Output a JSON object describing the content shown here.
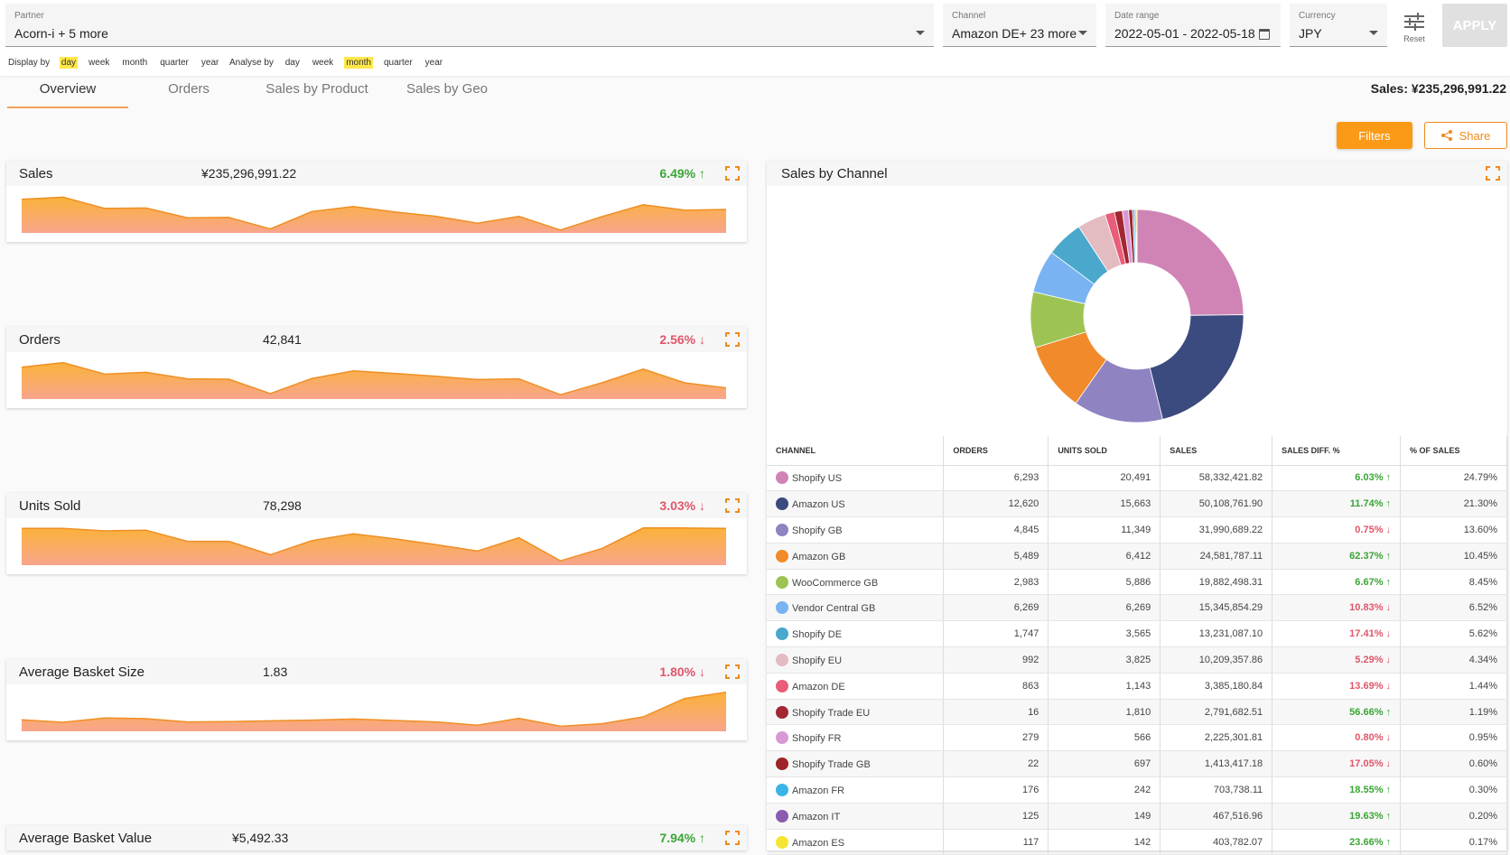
{
  "filters": {
    "partner": {
      "label": "Partner",
      "value": "Acorn-i + 5 more"
    },
    "channel": {
      "label": "Channel",
      "value": "Amazon DE+ 23 more"
    },
    "date_range": {
      "label": "Date range",
      "value": "2022-05-01 - 2022-05-18"
    },
    "currency": {
      "label": "Currency",
      "value": "JPY"
    },
    "reset_label": "Reset",
    "apply_label": "APPLY"
  },
  "display_by": {
    "label": "Display by",
    "options": [
      "day",
      "week",
      "month",
      "quarter",
      "year"
    ],
    "selected": "day"
  },
  "analyse_by": {
    "label": "Analyse by",
    "options": [
      "day",
      "week",
      "month",
      "quarter",
      "year"
    ],
    "selected": "month"
  },
  "tabs": [
    "Overview",
    "Orders",
    "Sales by Product",
    "Sales by Geo"
  ],
  "active_tab": "Overview",
  "total_sales": "Sales: ¥235,296,991.22",
  "actions": {
    "filters": "Filters",
    "share": "Share"
  },
  "accent_color": "#fb9a17",
  "kpis": [
    {
      "name": "Sales",
      "value": "¥235,296,991.22",
      "change": "6.49%",
      "dir": "up",
      "series": [
        0.83,
        0.89,
        0.58,
        0.59,
        0.32,
        0.33,
        0.01,
        0.49,
        0.63,
        0.48,
        0.36,
        0.17,
        0.36,
        -0.02,
        0.35,
        0.68,
        0.53,
        0.55
      ]
    },
    {
      "name": "Orders",
      "value": "42,841",
      "change": "2.56%",
      "dir": "down",
      "series": [
        0.78,
        0.91,
        0.59,
        0.64,
        0.46,
        0.45,
        0.05,
        0.47,
        0.68,
        0.61,
        0.53,
        0.44,
        0.46,
        0.02,
        0.35,
        0.73,
        0.35,
        0.21
      ]
    },
    {
      "name": "Units Sold",
      "value": "78,298",
      "change": "3.03%",
      "dir": "down",
      "series": [
        0.92,
        0.92,
        0.85,
        0.87,
        0.56,
        0.56,
        0.19,
        0.58,
        0.77,
        0.63,
        0.47,
        0.29,
        0.66,
        0.02,
        0.36,
        0.93,
        0.93,
        0.92
      ]
    },
    {
      "name": "Average Basket Size",
      "value": "1.83",
      "change": "1.80%",
      "dir": "down",
      "series": [
        0.22,
        0.15,
        0.27,
        0.25,
        0.16,
        0.17,
        0.19,
        0.21,
        0.24,
        0.2,
        0.16,
        0.07,
        0.26,
        0.04,
        0.11,
        0.3,
        0.81,
        0.98
      ]
    },
    {
      "name": "Average Basket Value",
      "value": "¥5,492.33",
      "change": "7.94%",
      "dir": "up",
      "series": []
    }
  ],
  "channel_panel": {
    "title": "Sales by Channel",
    "columns": [
      "CHANNEL",
      "ORDERS",
      "UNITS SOLD",
      "SALES",
      "SALES DIFF. %",
      "% OF SALES"
    ],
    "rows": [
      {
        "channel": "Shopify US",
        "color": "#d084b6",
        "orders": "6,293",
        "units": "20,491",
        "sales": "58,332,421.82",
        "diff": "6.03%",
        "dir": "up",
        "share": "24.79%"
      },
      {
        "channel": "Amazon US",
        "color": "#3b4a7f",
        "orders": "12,620",
        "units": "15,663",
        "sales": "50,108,761.90",
        "diff": "11.74%",
        "dir": "up",
        "share": "21.30%"
      },
      {
        "channel": "Shopify GB",
        "color": "#8f83c2",
        "orders": "4,845",
        "units": "11,349",
        "sales": "31,990,689.22",
        "diff": "0.75%",
        "dir": "down",
        "share": "13.60%"
      },
      {
        "channel": "Amazon GB",
        "color": "#f18a2a",
        "orders": "5,489",
        "units": "6,412",
        "sales": "24,581,787.11",
        "diff": "62.37%",
        "dir": "up",
        "share": "10.45%"
      },
      {
        "channel": "WooCommerce GB",
        "color": "#9dc452",
        "orders": "2,983",
        "units": "5,886",
        "sales": "19,882,498.31",
        "diff": "6.67%",
        "dir": "up",
        "share": "8.45%"
      },
      {
        "channel": "Vendor Central GB",
        "color": "#7ab3f2",
        "orders": "6,269",
        "units": "6,269",
        "sales": "15,345,854.29",
        "diff": "10.83%",
        "dir": "down",
        "share": "6.52%"
      },
      {
        "channel": "Shopify DE",
        "color": "#4aa8cc",
        "orders": "1,747",
        "units": "3,565",
        "sales": "13,231,087.10",
        "diff": "17.41%",
        "dir": "down",
        "share": "5.62%"
      },
      {
        "channel": "Shopify EU",
        "color": "#e3bcc2",
        "orders": "992",
        "units": "3,825",
        "sales": "10,209,357.86",
        "diff": "5.29%",
        "dir": "down",
        "share": "4.34%"
      },
      {
        "channel": "Amazon DE",
        "color": "#e85d78",
        "orders": "863",
        "units": "1,143",
        "sales": "3,385,180.84",
        "diff": "13.69%",
        "dir": "down",
        "share": "1.44%"
      },
      {
        "channel": "Shopify Trade EU",
        "color": "#a32633",
        "orders": "16",
        "units": "1,810",
        "sales": "2,791,682.51",
        "diff": "56.66%",
        "dir": "up",
        "share": "1.19%"
      },
      {
        "channel": "Shopify FR",
        "color": "#d79ad6",
        "orders": "279",
        "units": "566",
        "sales": "2,225,301.81",
        "diff": "0.80%",
        "dir": "down",
        "share": "0.95%"
      },
      {
        "channel": "Shopify Trade GB",
        "color": "#9e2429",
        "orders": "22",
        "units": "697",
        "sales": "1,413,417.18",
        "diff": "17.05%",
        "dir": "down",
        "share": "0.60%"
      },
      {
        "channel": "Amazon FR",
        "color": "#3bb5e8",
        "orders": "176",
        "units": "242",
        "sales": "703,738.11",
        "diff": "18.55%",
        "dir": "up",
        "share": "0.30%"
      },
      {
        "channel": "Amazon IT",
        "color": "#8a5cb0",
        "orders": "125",
        "units": "149",
        "sales": "467,516.96",
        "diff": "19.63%",
        "dir": "up",
        "share": "0.20%"
      },
      {
        "channel": "Amazon ES",
        "color": "#f5e531",
        "orders": "117",
        "units": "142",
        "sales": "403,782.07",
        "diff": "23.66%",
        "dir": "up",
        "share": "0.17%"
      }
    ]
  }
}
